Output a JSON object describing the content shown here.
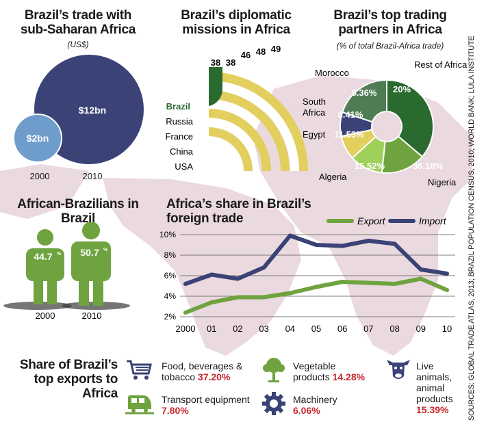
{
  "colors": {
    "navy": "#3a4276",
    "light_blue": "#6e9dcc",
    "green": "#6fa33f",
    "dark_green": "#2b6a2f",
    "yellow": "#e2cf5e",
    "red_text": "#c8262c",
    "map_pink": "#ead9df"
  },
  "source_note": "SOURCES: GLOBAL TRADE ATLAS, 2013; BRAZIL POPULATION CENSUS, 2010; WORLD BANK; LULA INSTITUTE",
  "chart_data": [
    {
      "type": "bubble",
      "title": "Brazil’s trade with sub-Saharan Africa",
      "subtitle": "(US$)",
      "categories": [
        "2000",
        "2010"
      ],
      "values": [
        2,
        12
      ],
      "value_labels": [
        "$2bn",
        "$12bn"
      ],
      "unit": "US$ bn"
    },
    {
      "type": "bar",
      "title": "Brazil’s diplomatic missions in Africa",
      "categories": [
        "Brazil",
        "Russia",
        "France",
        "China",
        "USA"
      ],
      "values": [
        38,
        38,
        46,
        48,
        49
      ],
      "highlight": "Brazil"
    },
    {
      "type": "pie",
      "title": "Brazil’s top trading partners in Africa",
      "subtitle": "(% of total Brazil-Africa trade)",
      "labels": [
        "Nigeria",
        "Algeria",
        "Egypt",
        "South Africa",
        "Morocco",
        "Rest of Africa"
      ],
      "values": [
        36.18,
        15.52,
        11.53,
        8.41,
        8.36,
        20
      ],
      "value_labels": [
        "36.18%",
        "15.52%",
        "11.53%",
        "8.41%",
        "8.36%",
        "20%"
      ]
    },
    {
      "type": "bar",
      "title": "African-Brazilians in Brazil",
      "categories": [
        "2000",
        "2010"
      ],
      "values": [
        44.7,
        50.7
      ],
      "value_labels": [
        "44.7",
        "50.7"
      ],
      "unit": "%"
    },
    {
      "type": "line",
      "title": "Africa’s share in Brazil’s foreign trade",
      "x": [
        "2000",
        "01",
        "02",
        "03",
        "04",
        "05",
        "06",
        "07",
        "08",
        "09",
        "10"
      ],
      "series": [
        {
          "name": "Export",
          "values": [
            2.4,
            3.4,
            3.9,
            3.9,
            4.3,
            4.9,
            5.4,
            5.3,
            5.2,
            5.7,
            4.6
          ]
        },
        {
          "name": "Import",
          "values": [
            5.2,
            6.1,
            5.7,
            6.8,
            9.9,
            9.0,
            8.9,
            9.4,
            9.1,
            6.6,
            6.2
          ]
        }
      ],
      "ylim": [
        2,
        10
      ],
      "yticks": [
        "2%",
        "4%",
        "6%",
        "8%",
        "10%"
      ],
      "legend": "top-right"
    },
    {
      "type": "table",
      "title": "Share of Brazil’s top exports to Africa",
      "items": [
        {
          "icon": "shopping-cart-icon",
          "label": "Food, beverages & tobacco",
          "value": "37.20%"
        },
        {
          "icon": "tree-icon",
          "label": "Vegetable products",
          "value": "14.28%"
        },
        {
          "icon": "cow-icon",
          "label": "Live animals, animal products",
          "value": "15.39%"
        },
        {
          "icon": "train-icon",
          "label": "Transport equipment",
          "value": "7.80%"
        },
        {
          "icon": "gear-icon",
          "label": "Machinery",
          "value": "6.06%"
        }
      ]
    }
  ]
}
